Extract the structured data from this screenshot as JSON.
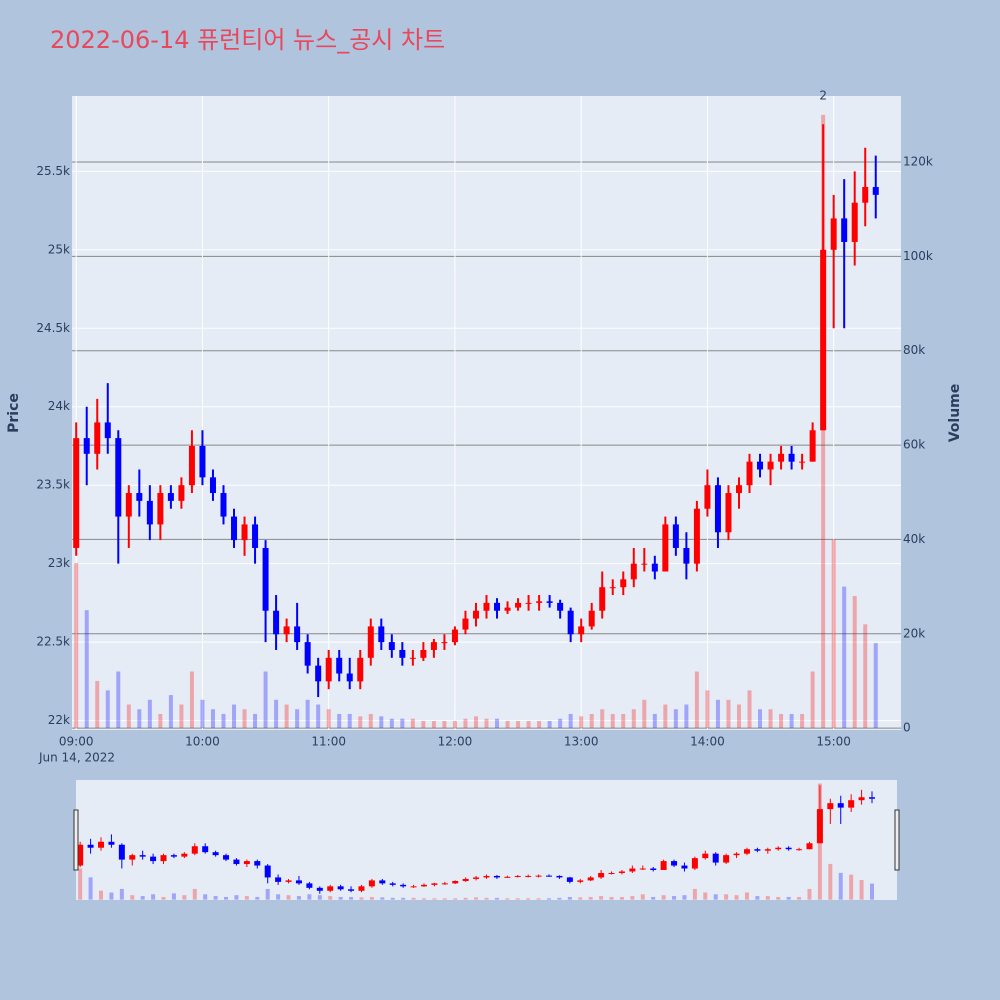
{
  "chart_data": {
    "type": "candlestick",
    "title": "2022-06-14 퓨런티어 뉴스_공시 차트",
    "yaxis_title": "Price",
    "y2axis_title": "Volume",
    "x_date_label": "Jun 14, 2022",
    "increasing_color": "#ff0000",
    "decreasing_color": "#0000ff",
    "x": [
      "09:00",
      "09:05",
      "09:10",
      "09:15",
      "09:20",
      "09:25",
      "09:30",
      "09:35",
      "09:40",
      "09:45",
      "09:50",
      "09:55",
      "10:00",
      "10:05",
      "10:10",
      "10:15",
      "10:20",
      "10:25",
      "10:30",
      "10:35",
      "10:40",
      "10:45",
      "10:50",
      "10:55",
      "11:00",
      "11:05",
      "11:10",
      "11:15",
      "11:20",
      "11:25",
      "11:30",
      "11:35",
      "11:40",
      "11:45",
      "11:50",
      "11:55",
      "12:00",
      "12:05",
      "12:10",
      "12:15",
      "12:20",
      "12:25",
      "12:30",
      "12:35",
      "12:40",
      "12:45",
      "12:50",
      "12:55",
      "13:00",
      "13:05",
      "13:10",
      "13:15",
      "13:20",
      "13:25",
      "13:30",
      "13:35",
      "13:40",
      "13:45",
      "13:50",
      "13:55",
      "14:00",
      "14:05",
      "14:10",
      "14:15",
      "14:20",
      "14:25",
      "14:30",
      "14:35",
      "14:40",
      "14:45",
      "14:50",
      "14:55",
      "15:00",
      "15:05",
      "15:10",
      "15:15",
      "15:20"
    ],
    "open": [
      23100,
      23800,
      23700,
      23900,
      23800,
      23300,
      23450,
      23400,
      23250,
      23450,
      23400,
      23500,
      23750,
      23550,
      23450,
      23300,
      23150,
      23250,
      23100,
      22700,
      22550,
      22600,
      22500,
      22350,
      22250,
      22400,
      22300,
      22250,
      22400,
      22600,
      22500,
      22450,
      22400,
      22400,
      22450,
      22500,
      22500,
      22580,
      22650,
      22700,
      22750,
      22700,
      22720,
      22750,
      22750,
      22760,
      22750,
      22700,
      22550,
      22600,
      22700,
      22850,
      22850,
      22900,
      23000,
      23000,
      22950,
      23250,
      23100,
      23000,
      23350,
      23500,
      23200,
      23450,
      23500,
      23650,
      23600,
      23650,
      23700,
      23650,
      23650,
      23850,
      25000,
      25200,
      25050,
      25300,
      25400
    ],
    "high": [
      23900,
      24000,
      24050,
      24150,
      23850,
      23500,
      23600,
      23500,
      23500,
      23500,
      23550,
      23850,
      23850,
      23600,
      23500,
      23350,
      23300,
      23300,
      23150,
      22800,
      22650,
      22750,
      22550,
      22400,
      22450,
      22450,
      22400,
      22450,
      22650,
      22650,
      22550,
      22500,
      22450,
      22500,
      22520,
      22550,
      22600,
      22700,
      22750,
      22800,
      22780,
      22760,
      22780,
      22800,
      22800,
      22800,
      22770,
      22720,
      22650,
      22750,
      22950,
      22900,
      22950,
      23100,
      23100,
      23050,
      23300,
      23300,
      23200,
      23400,
      23600,
      23550,
      23500,
      23550,
      23700,
      23700,
      23700,
      23750,
      23750,
      23700,
      23900,
      25800,
      25350,
      25450,
      25500,
      25650,
      25600
    ],
    "low": [
      23050,
      23500,
      23600,
      23700,
      23000,
      23100,
      23300,
      23150,
      23150,
      23350,
      23350,
      23450,
      23500,
      23400,
      23250,
      23100,
      23050,
      23000,
      22500,
      22450,
      22500,
      22450,
      22300,
      22150,
      22200,
      22250,
      22200,
      22200,
      22350,
      22450,
      22400,
      22350,
      22350,
      22380,
      22400,
      22450,
      22480,
      22550,
      22600,
      22650,
      22650,
      22680,
      22700,
      22700,
      22700,
      22720,
      22650,
      22500,
      22500,
      22580,
      22650,
      22800,
      22800,
      22850,
      22950,
      22900,
      22950,
      23050,
      22900,
      22950,
      23300,
      23100,
      23150,
      23350,
      23450,
      23550,
      23500,
      23600,
      23600,
      23600,
      23650,
      23850,
      24500,
      24500,
      24900,
      25150,
      25200
    ],
    "close": [
      23800,
      23700,
      23900,
      23800,
      23300,
      23450,
      23400,
      23250,
      23450,
      23400,
      23500,
      23750,
      23550,
      23450,
      23300,
      23150,
      23250,
      23100,
      22700,
      22550,
      22600,
      22500,
      22350,
      22250,
      22400,
      22300,
      22250,
      22400,
      22600,
      22500,
      22450,
      22400,
      22400,
      22450,
      22500,
      22500,
      22580,
      22650,
      22700,
      22750,
      22700,
      22720,
      22750,
      22750,
      22760,
      22750,
      22700,
      22550,
      22600,
      22700,
      22850,
      22850,
      22900,
      23000,
      23000,
      22950,
      23250,
      23100,
      23000,
      23350,
      23500,
      23200,
      23450,
      23500,
      23650,
      23600,
      23650,
      23700,
      23650,
      23650,
      23850,
      25000,
      25200,
      25050,
      25300,
      25400,
      25350
    ],
    "volume": [
      35000,
      25000,
      10000,
      8000,
      12000,
      5000,
      4000,
      6000,
      3000,
      7000,
      5000,
      12000,
      6000,
      4000,
      3000,
      5000,
      4000,
      3000,
      12000,
      6000,
      5000,
      4000,
      6000,
      5000,
      4000,
      3000,
      3000,
      2500,
      3000,
      2500,
      2000,
      2000,
      2000,
      1500,
      1500,
      1500,
      1500,
      2000,
      2500,
      2000,
      2000,
      1500,
      1500,
      1500,
      1500,
      1500,
      2000,
      3000,
      2500,
      3000,
      4000,
      3000,
      3000,
      4000,
      6000,
      3000,
      5000,
      4000,
      5000,
      12000,
      8000,
      6000,
      6000,
      5000,
      8000,
      4000,
      4000,
      3000,
      3000,
      3000,
      12000,
      130000,
      40000,
      30000,
      28000,
      22000,
      18000
    ],
    "xlim": [
      "08:58",
      "15:32"
    ],
    "xticks": [
      "09:00",
      "10:00",
      "11:00",
      "12:00",
      "13:00",
      "14:00",
      "15:00"
    ],
    "ylim": [
      21940,
      25980
    ],
    "yticks": [
      {
        "value": 22000,
        "label": "22k"
      },
      {
        "value": 22500,
        "label": "22.5k"
      },
      {
        "value": 23000,
        "label": "23k"
      },
      {
        "value": 23500,
        "label": "23.5k"
      },
      {
        "value": 24000,
        "label": "24k"
      },
      {
        "value": 24500,
        "label": "24.5k"
      },
      {
        "value": 25000,
        "label": "25k"
      },
      {
        "value": 25500,
        "label": "25.5k"
      }
    ],
    "y2lim": [
      -400,
      134000
    ],
    "y2ticks": [
      0,
      {
        "value": 20000,
        "label": "20k"
      },
      {
        "value": 40000,
        "label": "40k"
      },
      {
        "value": 60000,
        "label": "60k"
      },
      {
        "value": 80000,
        "label": "80k"
      },
      {
        "value": 100000,
        "label": "100k"
      },
      {
        "value": 120000,
        "label": "120k"
      }
    ],
    "annotation": {
      "text": "2",
      "x": "14:55"
    },
    "grid": true
  }
}
